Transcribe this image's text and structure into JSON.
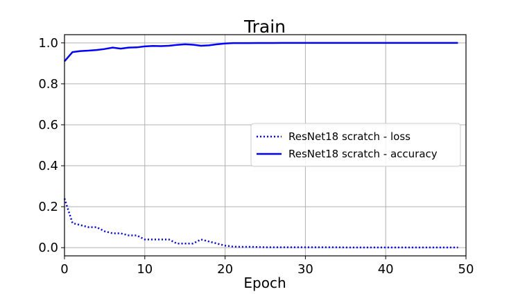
{
  "chart_data": {
    "type": "line",
    "title": "Train",
    "xlabel": "Epoch",
    "ylabel": "",
    "xlim": [
      0,
      50
    ],
    "ylim": [
      -0.04,
      1.04
    ],
    "xticks": [
      0,
      10,
      20,
      30,
      40,
      50
    ],
    "xtick_labels": [
      "0",
      "10",
      "20",
      "30",
      "40",
      "50"
    ],
    "yticks": [
      0.0,
      0.2,
      0.4,
      0.6,
      0.8,
      1.0
    ],
    "ytick_labels": [
      "0.0",
      "0.2",
      "0.4",
      "0.6",
      "0.8",
      "1.0"
    ],
    "grid": true,
    "legend_position": "center-right",
    "series": [
      {
        "name": "ResNet18 scratch - loss",
        "color": "#0000ff",
        "style": "dotted",
        "x": [
          0,
          1,
          2,
          3,
          4,
          5,
          6,
          7,
          8,
          9,
          10,
          11,
          12,
          13,
          14,
          15,
          16,
          17,
          18,
          19,
          20,
          21,
          22,
          23,
          24,
          25,
          26,
          27,
          28,
          29,
          30,
          31,
          32,
          33,
          34,
          35,
          36,
          37,
          38,
          39,
          40,
          41,
          42,
          43,
          44,
          45,
          46,
          47,
          48,
          49
        ],
        "values": [
          0.24,
          0.12,
          0.11,
          0.1,
          0.1,
          0.08,
          0.07,
          0.07,
          0.06,
          0.06,
          0.04,
          0.04,
          0.04,
          0.04,
          0.02,
          0.02,
          0.02,
          0.04,
          0.03,
          0.02,
          0.01,
          0.005,
          0.004,
          0.004,
          0.003,
          0.002,
          0.002,
          0.002,
          0.002,
          0.002,
          0.002,
          0.002,
          0.002,
          0.002,
          0.002,
          0.001,
          0.001,
          0.001,
          0.001,
          0.001,
          0.001,
          0.001,
          0.001,
          0.001,
          0.001,
          0.001,
          0.001,
          0.001,
          0.001,
          0.001
        ]
      },
      {
        "name": "ResNet18 scratch - accuracy",
        "color": "#0000ff",
        "style": "solid",
        "x": [
          0,
          1,
          2,
          3,
          4,
          5,
          6,
          7,
          8,
          9,
          10,
          11,
          12,
          13,
          14,
          15,
          16,
          17,
          18,
          19,
          20,
          21,
          22,
          23,
          24,
          25,
          26,
          27,
          28,
          29,
          30,
          31,
          32,
          33,
          34,
          35,
          36,
          37,
          38,
          39,
          40,
          41,
          42,
          43,
          44,
          45,
          46,
          47,
          48,
          49
        ],
        "values": [
          0.91,
          0.955,
          0.96,
          0.962,
          0.965,
          0.97,
          0.977,
          0.972,
          0.977,
          0.978,
          0.983,
          0.985,
          0.984,
          0.986,
          0.99,
          0.993,
          0.991,
          0.986,
          0.988,
          0.993,
          0.997,
          0.999,
          0.999,
          0.999,
          0.9995,
          0.9995,
          0.9995,
          0.9997,
          0.9997,
          0.9997,
          0.9998,
          0.9998,
          0.9998,
          0.9998,
          0.9998,
          0.9999,
          0.9999,
          0.9999,
          0.9999,
          0.9999,
          0.9999,
          0.9999,
          0.9999,
          0.9999,
          0.9999,
          0.9999,
          0.9999,
          0.9999,
          0.9999,
          0.9999
        ]
      }
    ]
  }
}
